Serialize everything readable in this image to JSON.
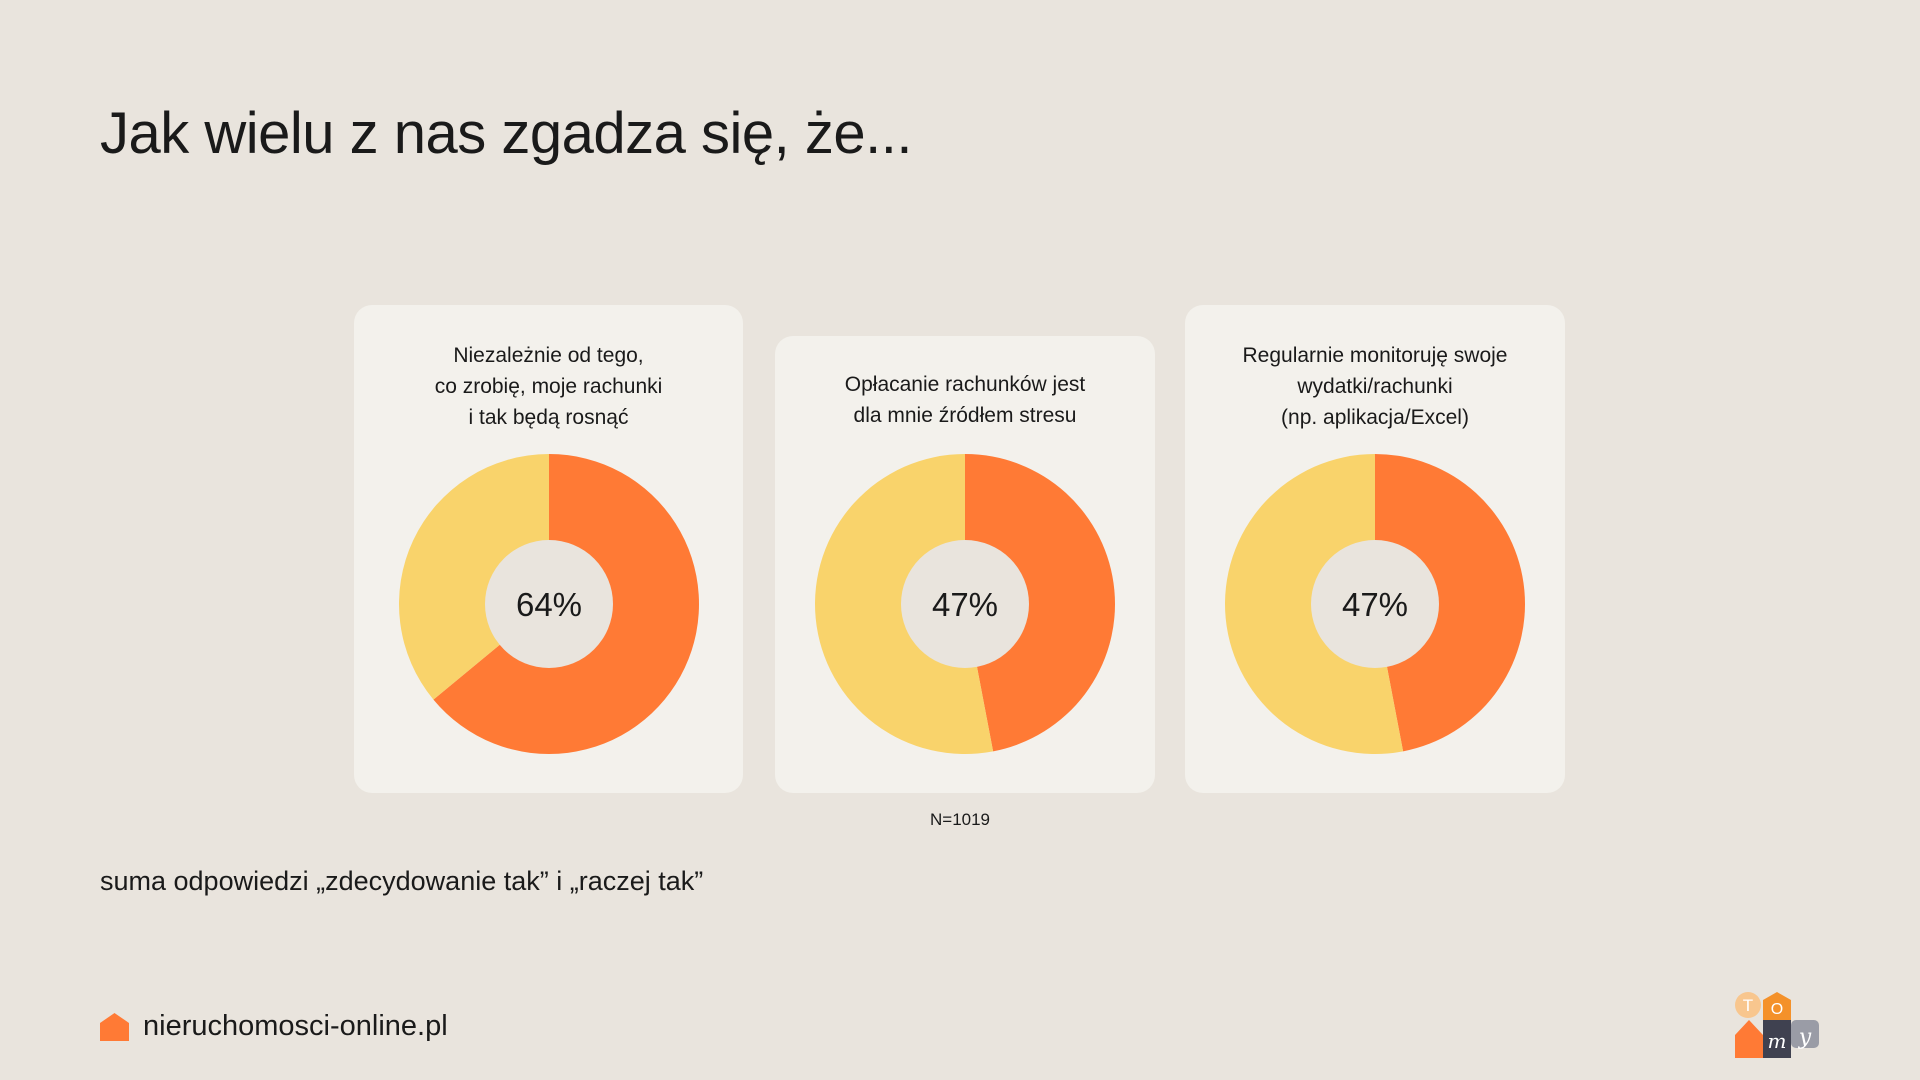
{
  "title": "Jak wielu z nas zgadza się, że...",
  "colors": {
    "agree": "#ff7a35",
    "rest": "#f9d36b",
    "hole": "#e9e4dd"
  },
  "chart_data": [
    {
      "type": "pie",
      "question": "Niezależnie od tego,\nco zrobię, moje rachunki\ni tak będą rosnąć",
      "value": 64,
      "label": "64%"
    },
    {
      "type": "pie",
      "question": "Opłacanie rachunków jest\ndla mnie źródłem stresu",
      "value": 47,
      "label": "47%"
    },
    {
      "type": "pie",
      "question": "Regularnie monitoruję swoje\nwydatki/rachunki\n(np. aplikacja/Excel)",
      "value": 47,
      "label": "47%"
    }
  ],
  "sample": "N=1019",
  "note": "suma odpowiedzi „zdecydowanie tak” i „raczej tak”",
  "footer": {
    "site": "nieruchomosci-online.pl"
  },
  "logo": {
    "letters": "TOmy"
  }
}
